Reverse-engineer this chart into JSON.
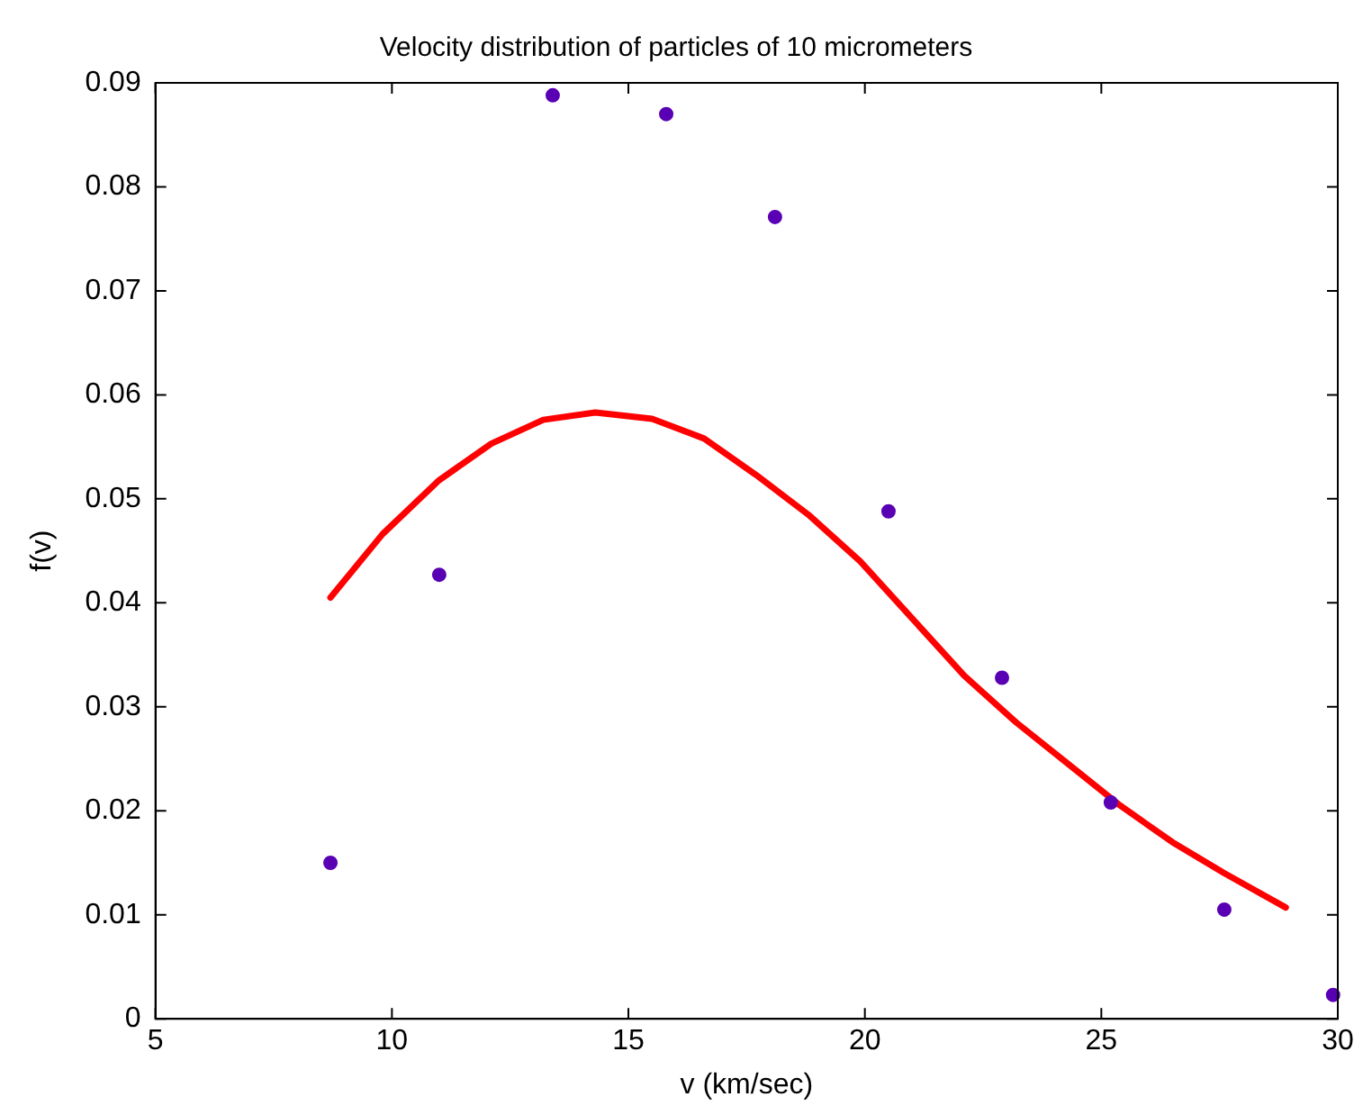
{
  "chart_data": {
    "type": "scatter",
    "title": "Velocity distribution of particles of 10 micrometers",
    "xlabel": "v (km/sec)",
    "ylabel": "f(v)",
    "xlim": [
      5,
      30
    ],
    "xticks": [
      5,
      10,
      15,
      20,
      25,
      30
    ],
    "ylim": [
      0,
      0.09
    ],
    "yticks": [
      0,
      0.01,
      0.02,
      0.03,
      0.04,
      0.05,
      0.06,
      0.07,
      0.08,
      0.09
    ],
    "grid": false,
    "legend": false,
    "series": [
      {
        "type": "scatter",
        "color": "#5a00b4",
        "marker": "circle",
        "x": [
          8.7,
          11.0,
          13.4,
          15.8,
          18.1,
          20.5,
          22.9,
          25.2,
          27.6,
          29.9
        ],
        "values": [
          0.015,
          0.0427,
          0.0888,
          0.087,
          0.0771,
          0.0488,
          0.0328,
          0.0208,
          0.0105,
          0.0023
        ]
      },
      {
        "type": "line",
        "color": "#ff0000",
        "marker": "none",
        "line_style": "solid",
        "x": [
          8.7,
          9.8,
          11.0,
          12.1,
          13.2,
          14.3,
          15.5,
          16.6,
          17.7,
          18.8,
          19.9,
          21.0,
          22.1,
          23.2,
          24.3,
          25.4,
          26.5,
          27.6,
          28.9
        ],
        "values": [
          0.0405,
          0.0466,
          0.0518,
          0.0553,
          0.0576,
          0.0583,
          0.0577,
          0.0558,
          0.0523,
          0.0485,
          0.044,
          0.0385,
          0.033,
          0.0285,
          0.0245,
          0.0205,
          0.017,
          0.014,
          0.0107
        ]
      }
    ]
  }
}
